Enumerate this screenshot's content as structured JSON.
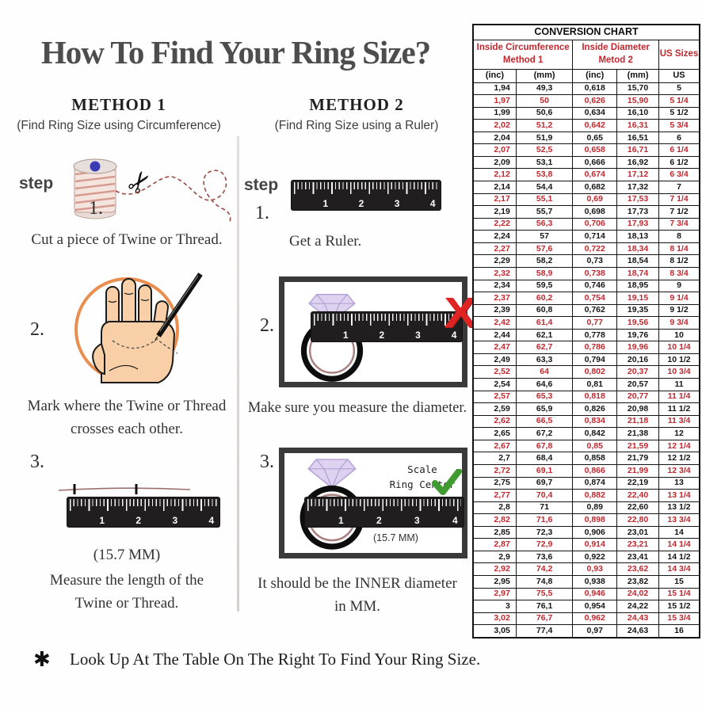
{
  "title": "How To Find Your Ring Size?",
  "ruler_numbers": [
    "1",
    "2",
    "3",
    "4"
  ],
  "methods": [
    {
      "name": "METHOD 1",
      "subtitle": "(Find Ring Size using Circumference)",
      "step_label": "step",
      "steps": [
        {
          "num": "1.",
          "text": "Cut a piece of  Twine or Thread."
        },
        {
          "num": "2.",
          "text_line1": "Mark where the Twine or Thread",
          "text_line2": "crosses each other."
        },
        {
          "num": "3.",
          "measurement": "(15.7 MM)",
          "text_line1": "Measure the length of the",
          "text_line2": "Twine or Thread."
        }
      ]
    },
    {
      "name": "METHOD 2",
      "subtitle": "(Find Ring Size using a Ruler)",
      "step_label": "step",
      "steps": [
        {
          "num": "1.",
          "text": "Get a Ruler."
        },
        {
          "num": "2.",
          "text": "Make sure you measure the diameter."
        },
        {
          "num": "3.",
          "scale_caption_line1": "Scale",
          "scale_caption_line2": "Ring Center",
          "measurement": "(15.7 MM)",
          "text_line1": "It should be the INNER diameter",
          "text_line2": "in MM."
        }
      ]
    }
  ],
  "footer": {
    "asterisk": "✱",
    "text": "Look Up At The Table On The Right To Find Your Ring Size."
  },
  "table": {
    "title": "CONVERSION CHART",
    "group1_line1": "Inside Circumference",
    "group1_line2": "Method 1",
    "group2_line1": "Inside Diameter",
    "group2_line2": "Metod 2",
    "group3": "US Sizes",
    "unit_headers": [
      "(inc)",
      "(mm)",
      "(inc)",
      "(mm)",
      "US"
    ],
    "rows": [
      {
        "cells": [
          "1,94",
          "49,3",
          "0,618",
          "15,70",
          "5"
        ],
        "red": false
      },
      {
        "cells": [
          "1,97",
          "50",
          "0,626",
          "15,90",
          "5 1/4"
        ],
        "red": true
      },
      {
        "cells": [
          "1,99",
          "50,6",
          "0,634",
          "16,10",
          "5 1/2"
        ],
        "red": false
      },
      {
        "cells": [
          "2,02",
          "51,2",
          "0,642",
          "16,31",
          "5 3/4"
        ],
        "red": true
      },
      {
        "cells": [
          "2,04",
          "51,9",
          "0,65",
          "16,51",
          "6"
        ],
        "red": false
      },
      {
        "cells": [
          "2,07",
          "52,5",
          "0,658",
          "16,71",
          "6 1/4"
        ],
        "red": true
      },
      {
        "cells": [
          "2,09",
          "53,1",
          "0,666",
          "16,92",
          "6 1/2"
        ],
        "red": false
      },
      {
        "cells": [
          "2,12",
          "53,8",
          "0,674",
          "17,12",
          "6 3/4"
        ],
        "red": true
      },
      {
        "cells": [
          "2,14",
          "54,4",
          "0,682",
          "17,32",
          "7"
        ],
        "red": false
      },
      {
        "cells": [
          "2,17",
          "55,1",
          "0,69",
          "17,53",
          "7 1/4"
        ],
        "red": true
      },
      {
        "cells": [
          "2,19",
          "55,7",
          "0,698",
          "17,73",
          "7 1/2"
        ],
        "red": false
      },
      {
        "cells": [
          "2,22",
          "56,3",
          "0,706",
          "17,93",
          "7 3/4"
        ],
        "red": true
      },
      {
        "cells": [
          "2,24",
          "57",
          "0,714",
          "18,13",
          "8"
        ],
        "red": false
      },
      {
        "cells": [
          "2,27",
          "57,6",
          "0,722",
          "18,34",
          "8 1/4"
        ],
        "red": true
      },
      {
        "cells": [
          "2,29",
          "58,2",
          "0,73",
          "18,54",
          "8 1/2"
        ],
        "red": false
      },
      {
        "cells": [
          "2,32",
          "58,9",
          "0,738",
          "18,74",
          "8 3/4"
        ],
        "red": true
      },
      {
        "cells": [
          "2,34",
          "59,5",
          "0,746",
          "18,95",
          "9"
        ],
        "red": false
      },
      {
        "cells": [
          "2,37",
          "60,2",
          "0,754",
          "19,15",
          "9 1/4"
        ],
        "red": true
      },
      {
        "cells": [
          "2,39",
          "60,8",
          "0,762",
          "19,35",
          "9 1/2"
        ],
        "red": false
      },
      {
        "cells": [
          "2,42",
          "61,4",
          "0,77",
          "19,56",
          "9 3/4"
        ],
        "red": true
      },
      {
        "cells": [
          "2,44",
          "62,1",
          "0,778",
          "19,76",
          "10"
        ],
        "red": false
      },
      {
        "cells": [
          "2,47",
          "62,7",
          "0,786",
          "19,96",
          "10 1/4"
        ],
        "red": true
      },
      {
        "cells": [
          "2,49",
          "63,3",
          "0,794",
          "20,16",
          "10 1/2"
        ],
        "red": false
      },
      {
        "cells": [
          "2,52",
          "64",
          "0,802",
          "20,37",
          "10 3/4"
        ],
        "red": true
      },
      {
        "cells": [
          "2,54",
          "64,6",
          "0,81",
          "20,57",
          "11"
        ],
        "red": false
      },
      {
        "cells": [
          "2,57",
          "65,3",
          "0,818",
          "20,77",
          "11 1/4"
        ],
        "red": true
      },
      {
        "cells": [
          "2,59",
          "65,9",
          "0,826",
          "20,98",
          "11 1/2"
        ],
        "red": false
      },
      {
        "cells": [
          "2,62",
          "66,5",
          "0,834",
          "21,18",
          "11 3/4"
        ],
        "red": true
      },
      {
        "cells": [
          "2,65",
          "67,2",
          "0,842",
          "21,38",
          "12"
        ],
        "red": false
      },
      {
        "cells": [
          "2,67",
          "67,8",
          "0,85",
          "21,59",
          "12 1/4"
        ],
        "red": true
      },
      {
        "cells": [
          "2,7",
          "68,4",
          "0,858",
          "21,79",
          "12 1/2"
        ],
        "red": false
      },
      {
        "cells": [
          "2,72",
          "69,1",
          "0,866",
          "21,99",
          "12 3/4"
        ],
        "red": true
      },
      {
        "cells": [
          "2,75",
          "69,7",
          "0,874",
          "22,19",
          "13"
        ],
        "red": false
      },
      {
        "cells": [
          "2,77",
          "70,4",
          "0,882",
          "22,40",
          "13 1/4"
        ],
        "red": true
      },
      {
        "cells": [
          "2,8",
          "71",
          "0,89",
          "22,60",
          "13 1/2"
        ],
        "red": false
      },
      {
        "cells": [
          "2,82",
          "71,6",
          "0,898",
          "22,80",
          "13 3/4"
        ],
        "red": true
      },
      {
        "cells": [
          "2,85",
          "72,3",
          "0,906",
          "23,01",
          "14"
        ],
        "red": false
      },
      {
        "cells": [
          "2,87",
          "72,9",
          "0,914",
          "23,21",
          "14 1/4"
        ],
        "red": true
      },
      {
        "cells": [
          "2,9",
          "73,6",
          "0,922",
          "23,41",
          "14 1/2"
        ],
        "red": false
      },
      {
        "cells": [
          "2,92",
          "74,2",
          "0,93",
          "23,62",
          "14 3/4"
        ],
        "red": true
      },
      {
        "cells": [
          "2,95",
          "74,8",
          "0,938",
          "23,82",
          "15"
        ],
        "red": false
      },
      {
        "cells": [
          "2,97",
          "75,5",
          "0,946",
          "24,02",
          "15 1/4"
        ],
        "red": true
      },
      {
        "cells": [
          "3",
          "76,1",
          "0,954",
          "24,22",
          "15 1/2"
        ],
        "red": false
      },
      {
        "cells": [
          "3,02",
          "76,7",
          "0,962",
          "24,43",
          "15 3/4"
        ],
        "red": true
      },
      {
        "cells": [
          "3,05",
          "77,4",
          "0,97",
          "24,63",
          "16"
        ],
        "red": false
      }
    ]
  },
  "colors": {
    "accent_red": "#c1272d",
    "check_green": "#3f9b2f",
    "x_red": "#e02323",
    "circle_orange": "#e8823c"
  }
}
